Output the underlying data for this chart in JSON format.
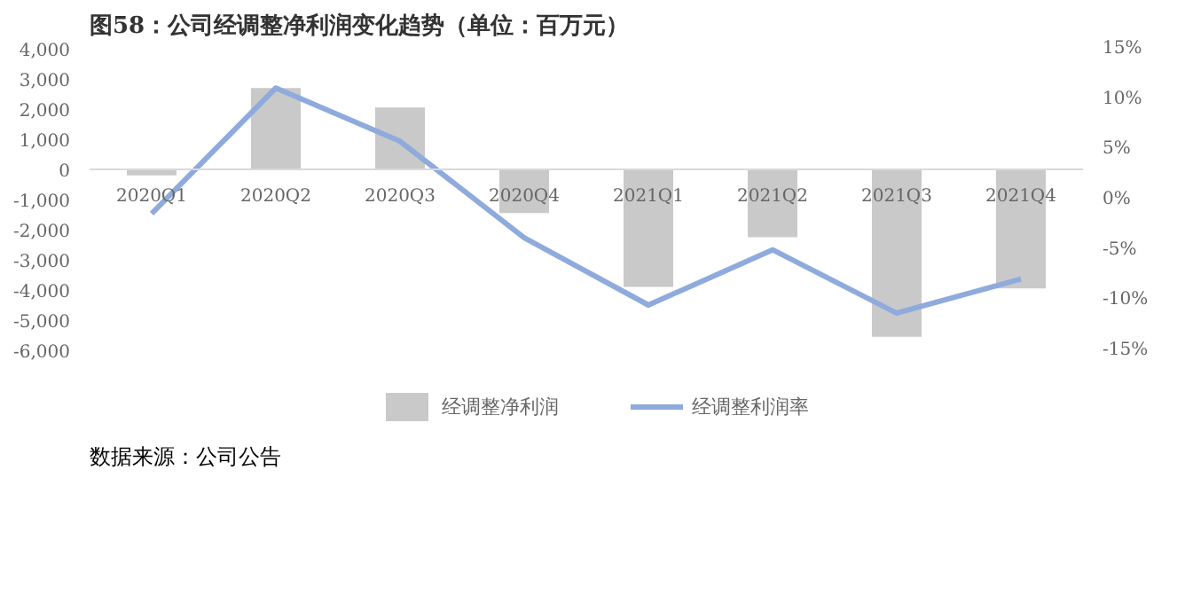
{
  "chart_data": {
    "type": "bar",
    "title": "图58：公司经调整净利润变化趋势（单位：百万元）",
    "categories": [
      "2020Q1",
      "2020Q2",
      "2020Q3",
      "2020Q4",
      "2021Q1",
      "2021Q2",
      "2021Q3",
      "2021Q4"
    ],
    "series": [
      {
        "name": "经调整净利润",
        "color": "#c9c9c9",
        "values": [
          -200,
          2700,
          2050,
          -1450,
          -3900,
          -2250,
          -5550,
          -3950
        ]
      },
      {
        "name": "经调整利润率",
        "type": "line",
        "axis": "y2",
        "color": "#8faadc",
        "values": [
          -1.4,
          11.1,
          5.8,
          -3.8,
          -10.5,
          -5.0,
          -11.3,
          -7.9
        ]
      }
    ],
    "ylim": [
      -6000,
      4000
    ],
    "yticks": [
      {
        "value": -6000,
        "label": "-6,000"
      },
      {
        "value": -5000,
        "label": "-5,000"
      },
      {
        "value": -4000,
        "label": "-4,000"
      },
      {
        "value": -3000,
        "label": "-3,000"
      },
      {
        "value": -2000,
        "label": "-2,000"
      },
      {
        "value": -1000,
        "label": "-1,000"
      },
      0,
      {
        "value": 1000,
        "label": "1,000"
      },
      {
        "value": 2000,
        "label": "2,000"
      },
      {
        "value": 3000,
        "label": "3,000"
      },
      {
        "value": 4000,
        "label": "4,000"
      }
    ],
    "y2lim": [
      -15,
      15
    ],
    "y2ticks": [
      {
        "value": -15,
        "label": "-15%"
      },
      {
        "value": -10,
        "label": "-10%"
      },
      {
        "value": -5,
        "label": "-5%"
      },
      {
        "value": 0,
        "label": "0%"
      },
      {
        "value": 5,
        "label": "5%"
      },
      {
        "value": 10,
        "label": "10%"
      },
      {
        "value": 15,
        "label": "15%"
      }
    ],
    "legend": "bottom",
    "grid": false,
    "annotations": [
      "数据来源：公司公告"
    ]
  }
}
